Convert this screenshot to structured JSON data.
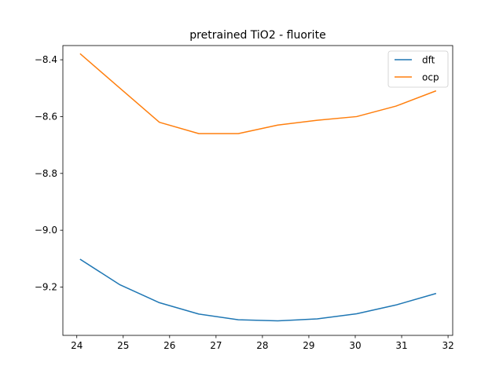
{
  "chart_data": {
    "type": "line",
    "title": "pretrained TiO2 - fluorite",
    "xlabel": "",
    "ylabel": "",
    "x": [
      24.08,
      24.93,
      25.78,
      26.63,
      27.48,
      28.33,
      29.18,
      30.03,
      30.88,
      31.73
    ],
    "series": [
      {
        "name": "dft",
        "color": "#1f77b4",
        "values": [
          -9.103,
          -9.192,
          -9.255,
          -9.295,
          -9.315,
          -9.319,
          -9.312,
          -9.294,
          -9.263,
          -9.223
        ]
      },
      {
        "name": "ocp",
        "color": "#ff7f0e",
        "values": [
          -8.38,
          -8.5,
          -8.62,
          -8.66,
          -8.66,
          -8.63,
          -8.613,
          -8.6,
          -8.563,
          -8.51
        ]
      }
    ],
    "xlim": [
      23.7,
      32.1
    ],
    "ylim": [
      -9.37,
      -8.35
    ],
    "xticks": [
      24,
      25,
      26,
      27,
      28,
      29,
      30,
      31,
      32
    ],
    "yticks": [
      -9.2,
      -9.0,
      -8.8,
      -8.6,
      -8.4
    ],
    "ytick_labels": [
      "−9.2",
      "−9.0",
      "−8.8",
      "−8.6",
      "−8.4"
    ],
    "grid": false,
    "legend_position": "top-right"
  }
}
